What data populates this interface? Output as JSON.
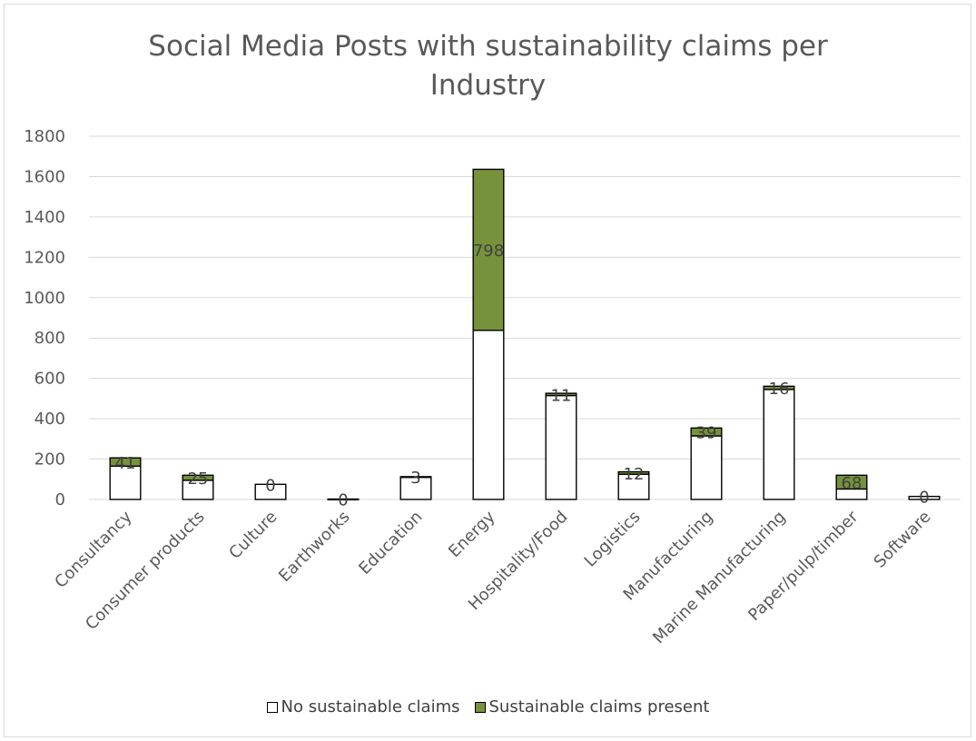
{
  "chart_data": {
    "type": "bar",
    "stacked": true,
    "title_line1": "Social Media Posts with sustainability claims per",
    "title_line2": "Industry",
    "ylim": [
      0,
      1800
    ],
    "yticks": [
      0,
      200,
      400,
      600,
      800,
      1000,
      1200,
      1400,
      1600,
      1800
    ],
    "categories": [
      "Consultancy",
      "Consumer products",
      "Culture",
      "Earthworks",
      "Education",
      "Energy",
      "Hospitality/Food",
      "Logistics",
      "Manufacturing",
      "Marine Manufacturing",
      "Paper/pulp/timber",
      "Software"
    ],
    "series": [
      {
        "name": "No sustainable claims",
        "color": "#ffffff",
        "stroke": "#000000",
        "values": [
          165,
          95,
          75,
          2,
          110,
          838,
          515,
          125,
          315,
          545,
          52,
          15
        ]
      },
      {
        "name": "Sustainable claims present",
        "color": "#76933c",
        "stroke": "#000000",
        "values": [
          41,
          25,
          0,
          0,
          3,
          798,
          11,
          12,
          39,
          16,
          68,
          0
        ]
      }
    ],
    "data_labels": [
      "41",
      "25",
      "0",
      "0",
      "3",
      "798",
      "11",
      "12",
      "39",
      "16",
      "68",
      "0"
    ],
    "grid": true,
    "legend_position": "bottom"
  }
}
